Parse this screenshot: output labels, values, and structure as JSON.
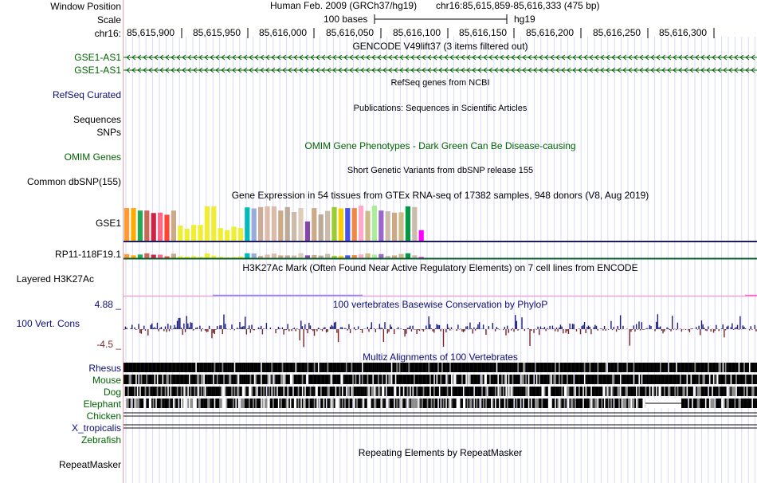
{
  "header": {
    "window_position_label": "Window Position",
    "scale_label": "Scale",
    "chrom_label": "chr16:",
    "assembly": "Human Feb. 2009 (GRCh37/hg19)",
    "position": "chr16:85,615,859-85,616,333 (475 bp)",
    "scale_text": "100 bases",
    "db": "hg19",
    "ticks": [
      "85,615,900",
      "85,615,950",
      "85,616,000",
      "85,616,050",
      "85,616,100",
      "85,616,150",
      "85,616,200",
      "85,616,250",
      "85,616,300"
    ]
  },
  "tracks": {
    "gencode": {
      "title": "GENCODE V49lift37 (3 items filtered out)",
      "items": [
        "GSE1-AS1",
        "GSE1-AS1"
      ],
      "color": "#006400"
    },
    "refseq": {
      "title": "RefSeq genes from NCBI",
      "label": "RefSeq Curated"
    },
    "publications": {
      "title": "Publications: Sequences in Scientific Articles",
      "label": "Sequences"
    },
    "snps_label": "SNPs",
    "omim": {
      "title": "OMIM Gene Phenotypes - Dark Green Can Be Disease-causing",
      "label": "OMIM Genes"
    },
    "dbsnp": {
      "title": "Short Genetic Variants from dbSNP release 155",
      "label": "Common dbSNP(155)"
    },
    "gtex": {
      "title": "Gene Expression in 54 tissues from GTEx RNA-seq of 17382 samples, 948 donors (V8, Aug 2019)",
      "genes": [
        "GSE1",
        "RP11-118F19.1"
      ]
    },
    "h3k27ac": {
      "title": "H3K27Ac Mark (Often Found Near Active Regulatory Elements) on 7 cell lines from ENCODE",
      "label": "Layered H3K27Ac"
    },
    "phylop": {
      "title": "100 vertebrates Basewise Conservation by PhyloP",
      "label": "100 Vert. Cons",
      "max": "4.88 _",
      "min": "-4.5 _"
    },
    "multiz": {
      "title": "Multiz Alignments of 100 Vertebrates",
      "species": [
        "Rhesus",
        "Mouse",
        "Dog",
        "Elephant",
        "Chicken",
        "X_tropicalis",
        "Zebrafish"
      ]
    },
    "repeatmasker": {
      "title": "Repeating Elements by RepeatMasker",
      "label": "RepeatMasker"
    }
  },
  "colors": {
    "gene": "#006400",
    "blue_track": "#0c0c78",
    "phylop_pos": "#1c1c7c",
    "phylop_neg": "#7a2222",
    "grid": "#d9d9ff",
    "divider": "#f2a0a0"
  },
  "gtex_colors": [
    "#ff9933",
    "#ffaa00",
    "#22aa55",
    "#cc6655",
    "#cc2244",
    "#ff6688",
    "#ff4433",
    "#ccaa88",
    "#eeee33",
    "#eeee33",
    "#eeee33",
    "#eeee33",
    "#eeee33",
    "#eeee33",
    "#eeee33",
    "#eeee33",
    "#eeee33",
    "#eeee33",
    "#00bbbb",
    "#99aadd",
    "#ccaa99",
    "#ddbbaa",
    "#ddbbaa",
    "#ccaa88",
    "#bbaa99",
    "#ccbbaa",
    "#ddccbb",
    "#8844aa",
    "#ccaa88",
    "#bbaa99",
    "#ccbbaa",
    "#99cc33",
    "#ffcc00",
    "#4455ee",
    "#ee8844",
    "#ffaacc",
    "#ccbb88",
    "#aaee99",
    "#9966cc",
    "#ccbbaa",
    "#ccaa88",
    "#ccbb88",
    "#009944",
    "#ccbbaa",
    "#ff00ff"
  ],
  "gtex_values": [
    0.93,
    0.93,
    0.86,
    0.86,
    0.79,
    0.8,
    0.74,
    0.86,
    0.43,
    0.34,
    0.45,
    0.45,
    0.98,
    0.98,
    0.36,
    0.3,
    0.4,
    0.36,
    0.95,
    0.92,
    0.96,
    0.98,
    0.98,
    0.86,
    0.96,
    0.82,
    0.93,
    0.55,
    0.93,
    0.75,
    0.85,
    0.96,
    0.92,
    0.93,
    0.93,
    1.0,
    0.85,
    1.0,
    0.86,
    0.84,
    0.8,
    0.81,
    0.98,
    0.96,
    0.3
  ]
}
